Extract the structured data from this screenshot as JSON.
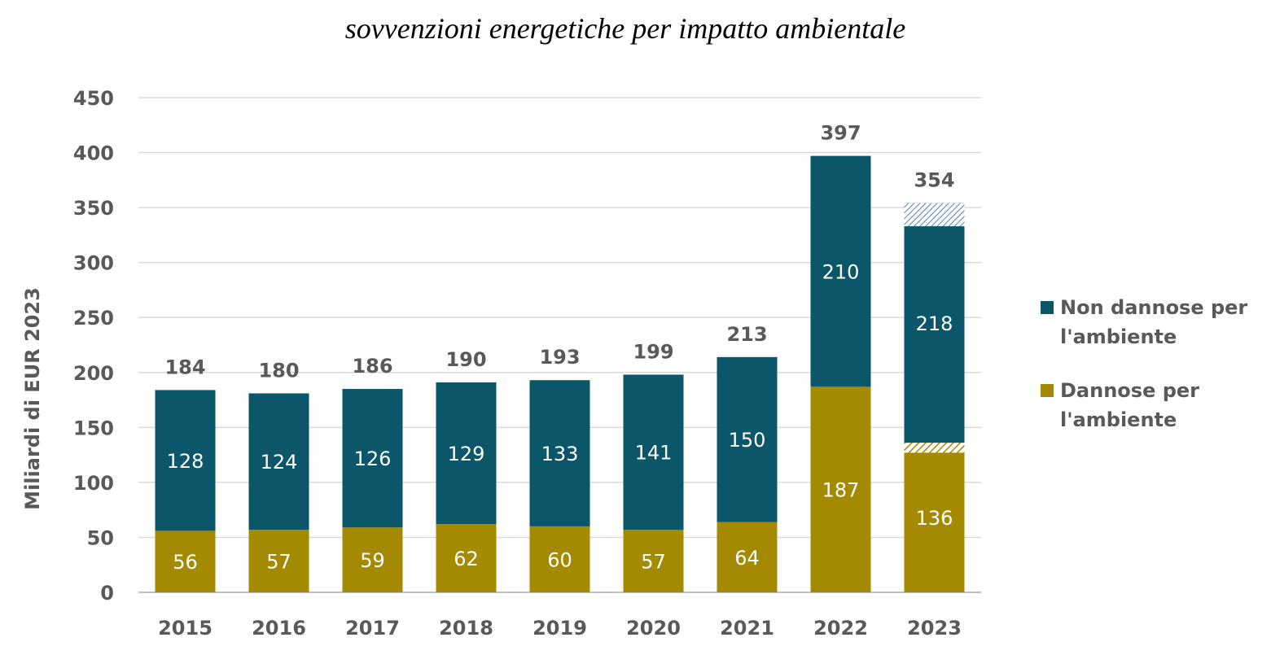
{
  "chart_data": {
    "type": "bar",
    "stacked": true,
    "title": "sovvenzioni energetiche per impatto ambientale",
    "xlabel": "",
    "ylabel": "Miliardi di EUR 2023",
    "ylim": [
      0,
      450
    ],
    "yticks": [
      0,
      50,
      100,
      150,
      200,
      250,
      300,
      350,
      400,
      450
    ],
    "grid": true,
    "legend_position": "right",
    "categories": [
      "2015",
      "2016",
      "2017",
      "2018",
      "2019",
      "2020",
      "2021",
      "2022",
      "2023"
    ],
    "series": [
      {
        "name": "Dannose per l'ambiente",
        "color": "#a38a00",
        "values": [
          56,
          57,
          59,
          62,
          60,
          57,
          64,
          187,
          136
        ],
        "labels": [
          "56",
          "57",
          "59",
          "62",
          "60",
          "57",
          "64",
          "187",
          "136"
        ]
      },
      {
        "name": "Non dannose per l'ambiente",
        "color": "#0b5669",
        "values": [
          128,
          124,
          126,
          129,
          133,
          141,
          150,
          210,
          218
        ],
        "labels": [
          "128",
          "124",
          "126",
          "129",
          "133",
          "141",
          "150",
          "210",
          "218"
        ]
      }
    ],
    "totals": [
      "184",
      "180",
      "186",
      "190",
      "193",
      "199",
      "213",
      "397",
      "354"
    ],
    "hatched_segments": [
      {
        "category": "2023",
        "series": "Dannose per l'ambiente",
        "from": 127,
        "to": 136,
        "color": "#a38a00"
      },
      {
        "category": "2023",
        "series": "Non dannose per l'ambiente",
        "from": 333,
        "to": 354,
        "color": "#4f81bd"
      }
    ]
  },
  "legend": [
    {
      "label": "Non dannose per l'ambiente",
      "color": "#0b5669"
    },
    {
      "label": "Dannose per l'ambiente",
      "color": "#a38a00"
    }
  ]
}
